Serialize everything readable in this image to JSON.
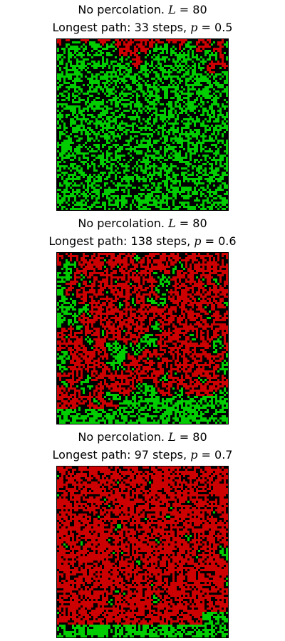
{
  "chart_data": [
    {
      "type": "heatmap",
      "title_line1": "No percolation. L = 80",
      "status": "No percolation.",
      "L": 80,
      "title_line2_prefix": "Longest path: ",
      "steps_text": "33 steps",
      "longest_path_steps": 33,
      "p": 0.5,
      "legend": [],
      "colors": {
        "empty": "#000000",
        "occupied": "#00cc00",
        "cluster": "#cc0000"
      },
      "cluster_reach": {
        "rows_from_top": 0.28,
        "tail_columns": 0.28
      },
      "grid": false
    },
    {
      "type": "heatmap",
      "title_line1": "No percolation. L = 80",
      "status": "No percolation.",
      "L": 80,
      "title_line2_prefix": "Longest path: ",
      "steps_text": "138 steps",
      "longest_path_steps": 138,
      "p": 0.6,
      "legend": [],
      "colors": {
        "empty": "#000000",
        "occupied": "#00cc00",
        "cluster": "#cc0000"
      },
      "cluster_reach": {
        "rows_from_top": 0.92,
        "tail_columns": 0.6
      },
      "grid": false
    },
    {
      "type": "heatmap",
      "title_line1": "No percolation. L = 80",
      "status": "No percolation.",
      "L": 80,
      "title_line2_prefix": "Longest path: ",
      "steps_text": "97 steps",
      "longest_path_steps": 97,
      "p": 0.7,
      "legend": [],
      "colors": {
        "empty": "#000000",
        "occupied": "#00cc00",
        "cluster": "#cc0000"
      },
      "cluster_reach": {
        "rows_from_top": 0.93,
        "tail_columns": 0.85
      },
      "grid": false
    }
  ]
}
